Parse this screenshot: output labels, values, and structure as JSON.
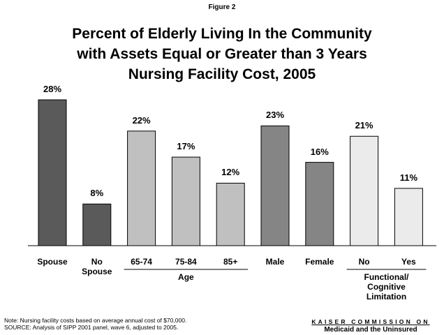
{
  "chart_data": {
    "type": "bar",
    "figure_label": "Figure 2",
    "title": [
      "Percent of Elderly Living In the Community",
      "with Assets Equal or Greater than 3 Years",
      "Nursing Facility Cost, 2005"
    ],
    "categories": [
      "Spouse",
      "No Spouse",
      "65-74",
      "75-84",
      "85+",
      "Male",
      "Female",
      "No",
      "Yes"
    ],
    "values": [
      28,
      8,
      22,
      17,
      12,
      23,
      16,
      21,
      11
    ],
    "value_labels": [
      "28%",
      "8%",
      "22%",
      "17%",
      "12%",
      "23%",
      "16%",
      "21%",
      "11%"
    ],
    "colors": [
      "#5a5a5a",
      "#5a5a5a",
      "#c0c0c0",
      "#c0c0c0",
      "#c0c0c0",
      "#858585",
      "#858585",
      "#ebebeb",
      "#ebebeb"
    ],
    "groups": [
      "Age",
      "Functional/ Cognitive Limitation"
    ],
    "note": "Note: Nursing facility costs based on average annual cost of $70,000.",
    "source": "SOURCE: Analysis of SIPP 2001 panel, wave 6, adjusted to 2005.",
    "logo": [
      "KAISER COMMISSION ON",
      "Medicaid and the Uninsured"
    ]
  }
}
